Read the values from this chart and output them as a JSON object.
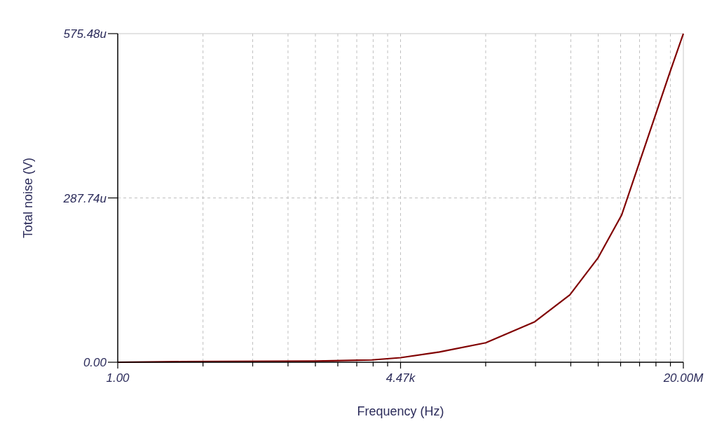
{
  "chart_data": {
    "type": "line",
    "xlabel": "Frequency (Hz)",
    "ylabel": "Total noise (V)",
    "log": "x",
    "xlim": [
      1,
      20000000
    ],
    "xticks": [
      {
        "value": 1,
        "label": "1.00"
      },
      {
        "value": 12.6,
        "label": null
      },
      {
        "value": 55.2,
        "label": null
      },
      {
        "value": 157.7,
        "label": null
      },
      {
        "value": 356,
        "label": null
      },
      {
        "value": 693,
        "label": null
      },
      {
        "value": 1217,
        "label": null
      },
      {
        "value": 1981,
        "label": null
      },
      {
        "value": 3045,
        "label": null
      },
      {
        "value": 4472,
        "label": "4.47k"
      },
      {
        "value": 56170,
        "label": null
      },
      {
        "value": 246900,
        "label": null
      },
      {
        "value": 705200,
        "label": null
      },
      {
        "value": 1592000,
        "label": null
      },
      {
        "value": 3099000,
        "label": null
      },
      {
        "value": 5443000,
        "label": null
      },
      {
        "value": 8859000,
        "label": null
      },
      {
        "value": 13620000,
        "label": null
      },
      {
        "value": 20000000,
        "label": "20.00M"
      }
    ],
    "ylim": [
      0,
      575.48
    ],
    "yticks": [
      {
        "value": 0,
        "label": "0.00"
      },
      {
        "value": 287.74,
        "label": "287.74u"
      },
      {
        "value": 575.48,
        "label": "575.48u"
      }
    ],
    "grid": true,
    "series": [
      {
        "color": "#800000",
        "x": [
          1,
          6.8,
          356,
          1900,
          4470,
          14200,
          56200,
          242000,
          685000,
          1570000,
          3200000,
          7830000,
          13200000,
          20000000
        ],
        "values": [
          0,
          1,
          2,
          4,
          8,
          18,
          34,
          71,
          118,
          182,
          258,
          414,
          505,
          575.48
        ]
      }
    ]
  }
}
